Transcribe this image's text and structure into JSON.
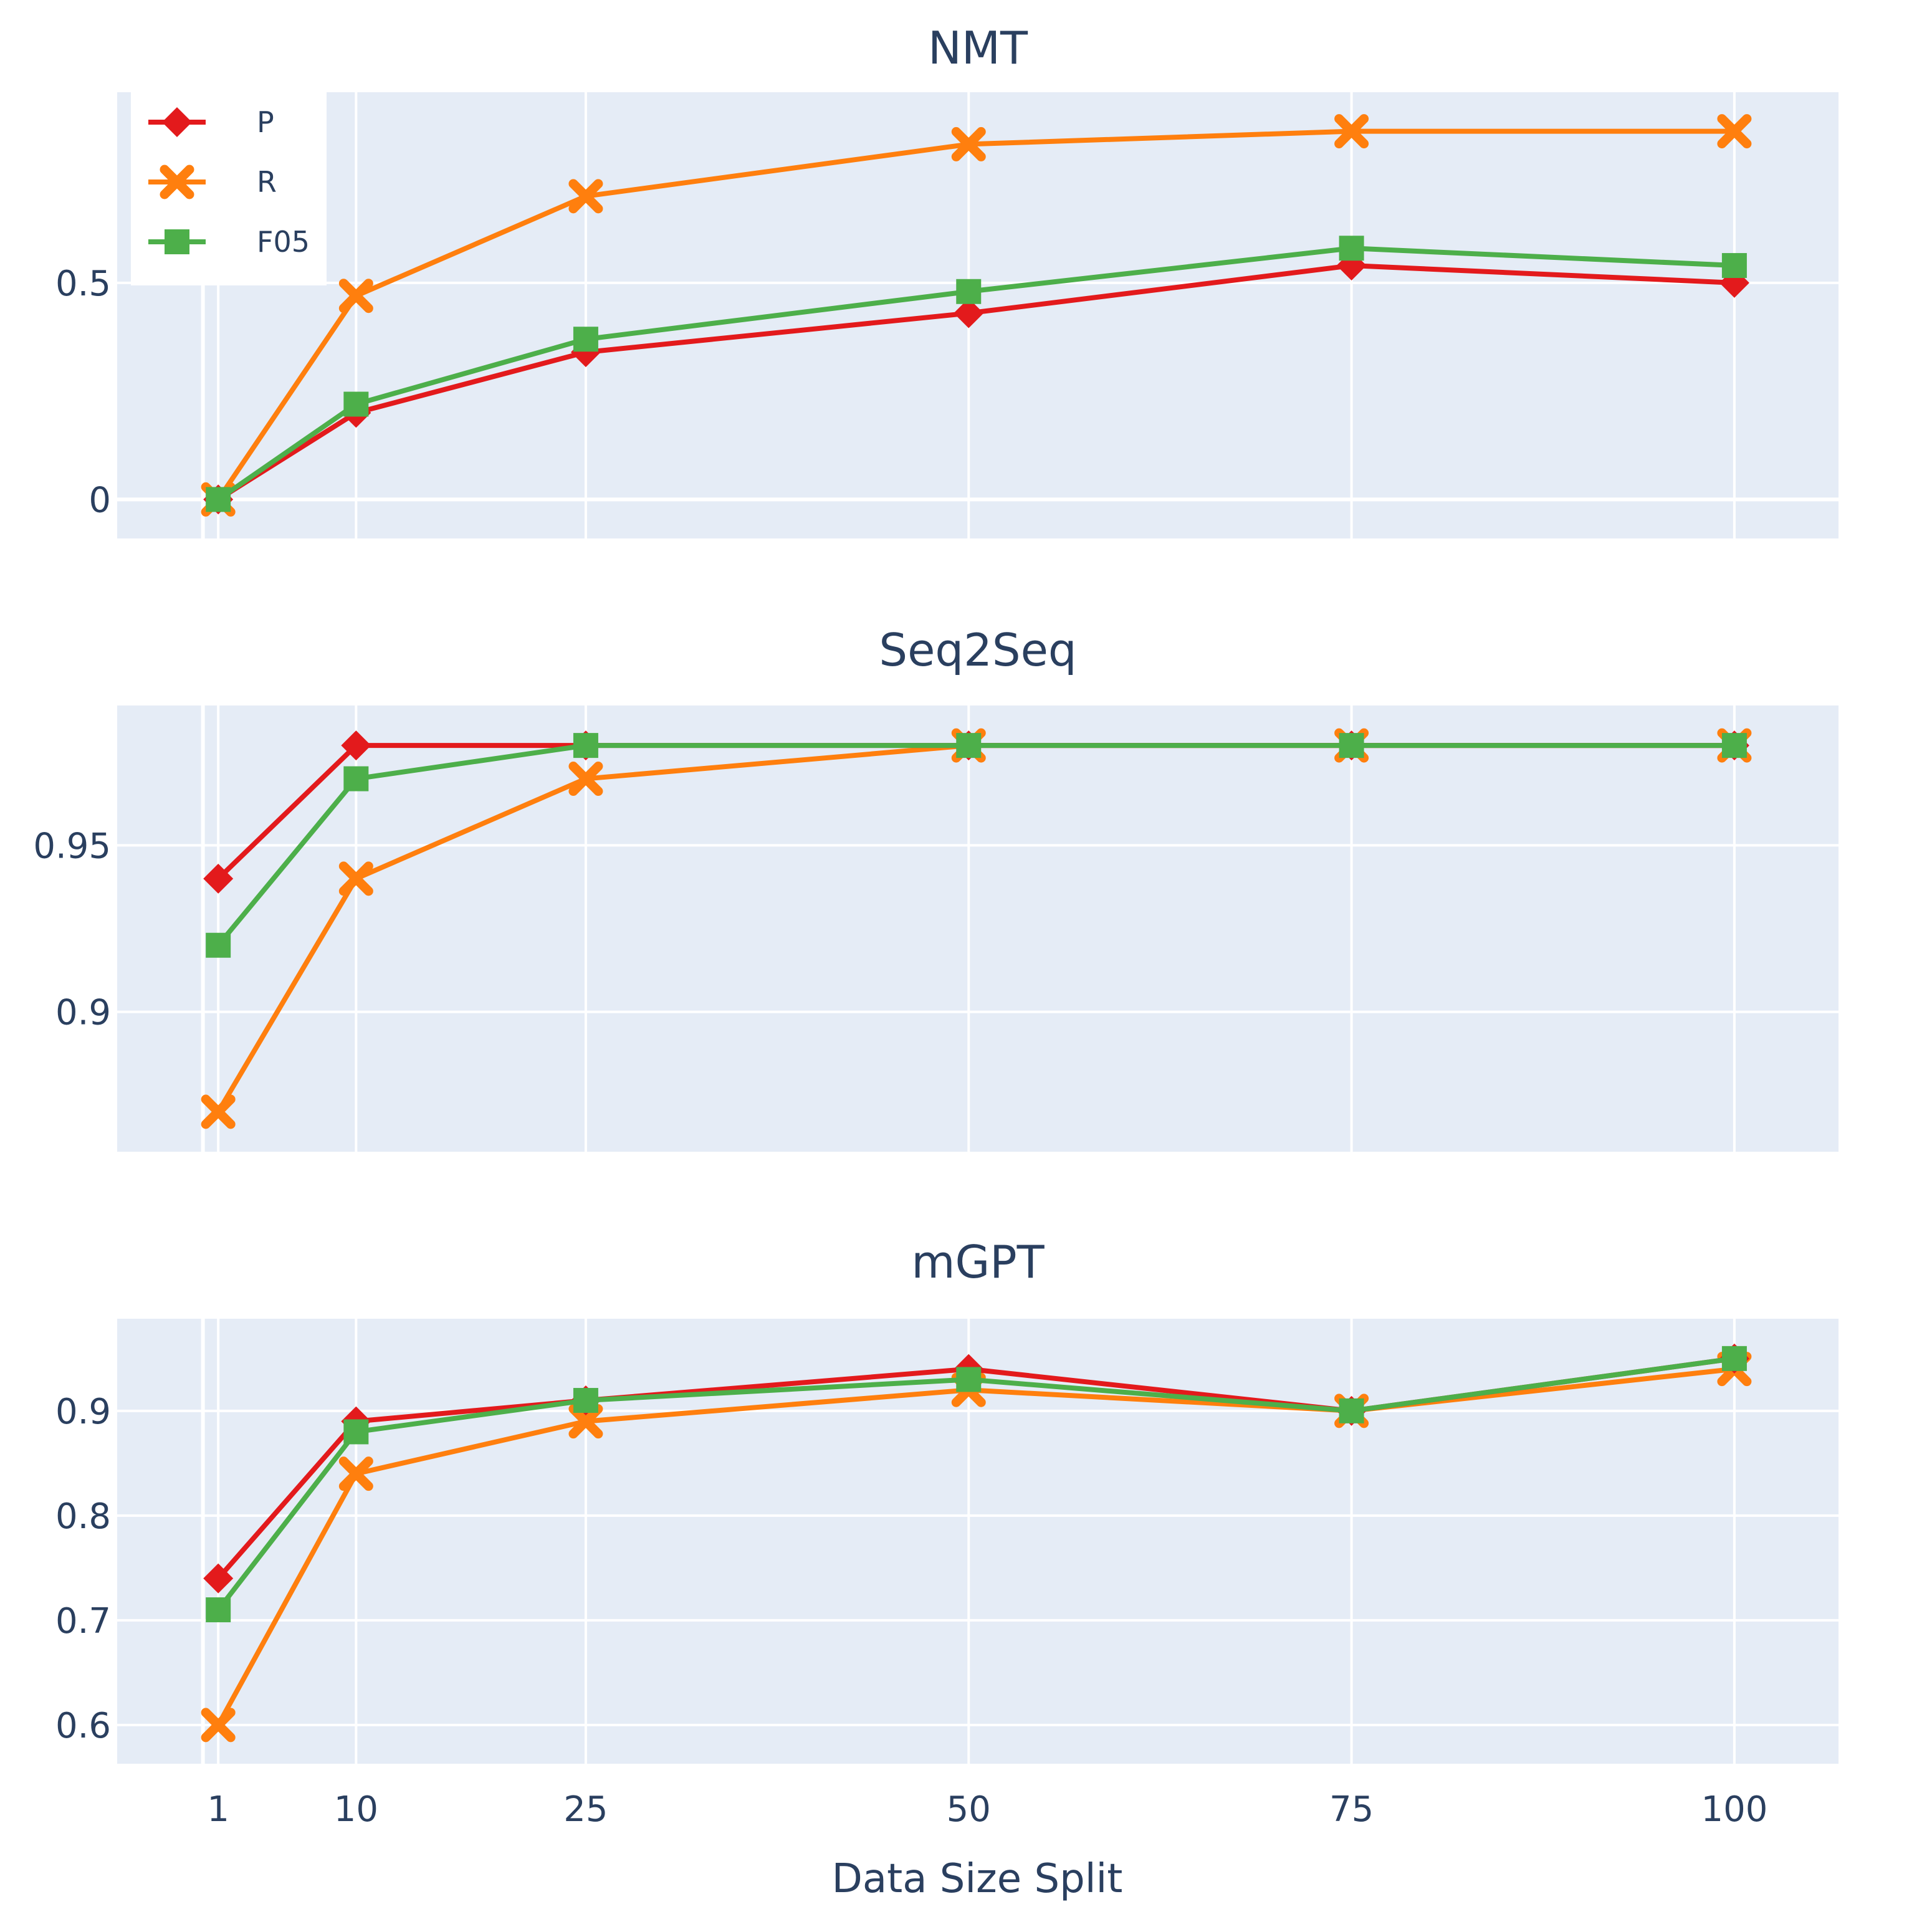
{
  "chart_data": {
    "type": "line",
    "x": [
      1,
      10,
      25,
      50,
      75,
      100
    ],
    "x_tick_labels": [
      "1",
      "10",
      "25",
      "50",
      "75",
      "100"
    ],
    "xlabel": "Data Size Split",
    "xlim": [
      -5.6,
      106.8
    ],
    "legend": {
      "position": "top-left",
      "entries": [
        {
          "name": "P",
          "color": "#e31a1c",
          "marker": "diamond"
        },
        {
          "name": "R",
          "color": "#ff7f0e",
          "marker": "x"
        },
        {
          "name": "F05",
          "color": "#4daf4a",
          "marker": "square"
        }
      ]
    },
    "subplots": [
      {
        "title": "NMT",
        "ylim": [
          -0.09,
          0.94
        ],
        "yticks": [
          0,
          0.5
        ],
        "ytick_labels": [
          "0",
          "0.5"
        ],
        "series": [
          {
            "name": "P",
            "values": [
              0,
              0.2,
              0.34,
              0.43,
              0.54,
              0.5
            ]
          },
          {
            "name": "R",
            "values": [
              0,
              0.47,
              0.7,
              0.82,
              0.85,
              0.85
            ]
          },
          {
            "name": "F05",
            "values": [
              0,
              0.22,
              0.37,
              0.48,
              0.58,
              0.54
            ]
          }
        ]
      },
      {
        "title": "Seq2Seq",
        "ylim": [
          0.858,
          0.992
        ],
        "yticks": [
          0.9,
          0.95
        ],
        "ytick_labels": [
          "0.9",
          "0.95"
        ],
        "series": [
          {
            "name": "P",
            "values": [
              0.94,
              0.98,
              0.98,
              0.98,
              0.98,
              0.98
            ]
          },
          {
            "name": "R",
            "values": [
              0.87,
              0.94,
              0.97,
              0.98,
              0.98,
              0.98
            ]
          },
          {
            "name": "F05",
            "values": [
              0.92,
              0.97,
              0.98,
              0.98,
              0.98,
              0.98
            ]
          }
        ]
      },
      {
        "title": "mGPT",
        "ylim": [
          0.563,
          0.988
        ],
        "yticks": [
          0.6,
          0.7,
          0.8,
          0.9
        ],
        "ytick_labels": [
          "0.6",
          "0.7",
          "0.8",
          "0.9"
        ],
        "series": [
          {
            "name": "P",
            "values": [
              0.74,
              0.89,
              0.91,
              0.94,
              0.9,
              0.95
            ]
          },
          {
            "name": "R",
            "values": [
              0.6,
              0.84,
              0.89,
              0.92,
              0.9,
              0.94
            ]
          },
          {
            "name": "F05",
            "values": [
              0.71,
              0.88,
              0.91,
              0.93,
              0.9,
              0.95
            ]
          }
        ]
      }
    ]
  }
}
